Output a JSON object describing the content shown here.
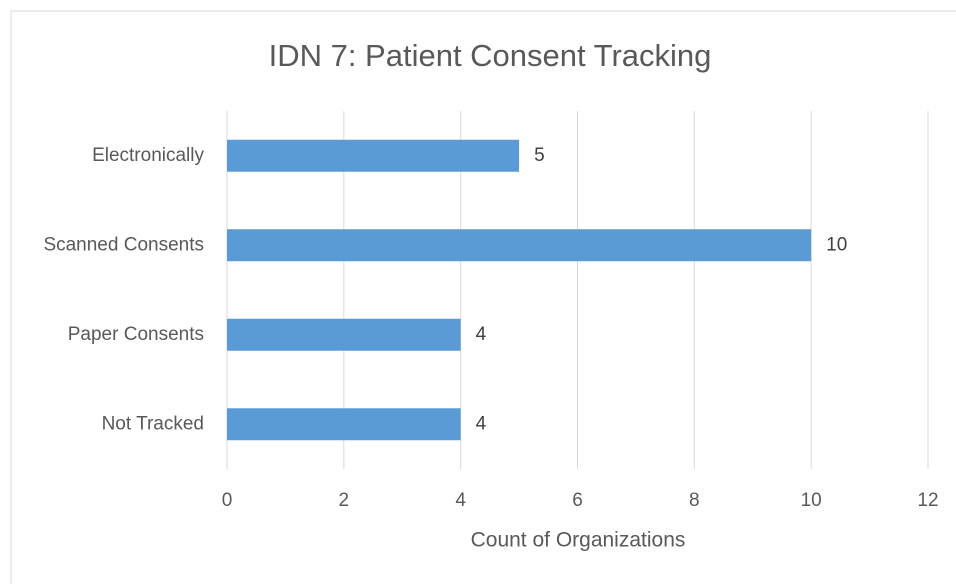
{
  "chart_data": {
    "type": "hbar",
    "title": "IDN 7: Patient Consent Tracking",
    "x_label": "Count of Organizations",
    "categories": [
      "Electronically",
      "Scanned Consents",
      "Paper Consents",
      "Not Tracked"
    ],
    "values": [
      5,
      10,
      4,
      4
    ],
    "color": "#5b9bd5",
    "xlim": [
      0,
      12
    ],
    "xticks": [
      0,
      2,
      4,
      6,
      8,
      10,
      12
    ],
    "grid": true
  }
}
